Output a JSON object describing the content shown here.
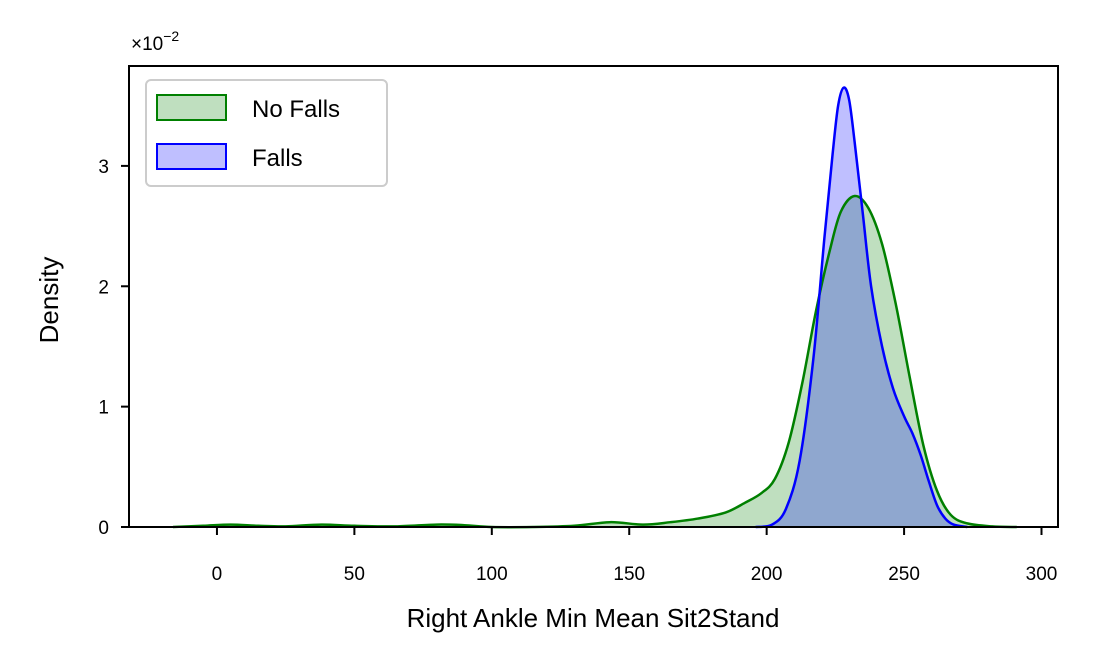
{
  "chart_data": {
    "type": "area",
    "title": "",
    "xlabel": "Right Ankle Min Mean Sit2Stand",
    "ylabel": "Density",
    "y_offset_text": "×10",
    "y_offset_exponent": "−2",
    "xlim": [
      -32,
      306
    ],
    "ylim": [
      0,
      3.83
    ],
    "x_ticks": [
      0,
      50,
      100,
      150,
      200,
      250,
      300
    ],
    "y_ticks": [
      0,
      1,
      2,
      3
    ],
    "grid": false,
    "legend_position": "top-left",
    "series": [
      {
        "name": "No Falls",
        "color": "#008000",
        "fill_color": "#008000",
        "points": [
          [
            -16,
            0.0
          ],
          [
            -5,
            0.01
          ],
          [
            5,
            0.02
          ],
          [
            15,
            0.01
          ],
          [
            25,
            0.005
          ],
          [
            38,
            0.02
          ],
          [
            50,
            0.01
          ],
          [
            65,
            0.005
          ],
          [
            80,
            0.02
          ],
          [
            90,
            0.015
          ],
          [
            100,
            0.0
          ],
          [
            115,
            0.0
          ],
          [
            130,
            0.01
          ],
          [
            143,
            0.04
          ],
          [
            155,
            0.02
          ],
          [
            165,
            0.04
          ],
          [
            175,
            0.07
          ],
          [
            185,
            0.12
          ],
          [
            192,
            0.2
          ],
          [
            198,
            0.28
          ],
          [
            203,
            0.4
          ],
          [
            208,
            0.7
          ],
          [
            213,
            1.2
          ],
          [
            218,
            1.8
          ],
          [
            223,
            2.3
          ],
          [
            227,
            2.62
          ],
          [
            232,
            2.75
          ],
          [
            237,
            2.65
          ],
          [
            242,
            2.35
          ],
          [
            247,
            1.85
          ],
          [
            252,
            1.25
          ],
          [
            257,
            0.68
          ],
          [
            262,
            0.3
          ],
          [
            267,
            0.1
          ],
          [
            273,
            0.03
          ],
          [
            282,
            0.005
          ],
          [
            291,
            0.0
          ]
        ]
      },
      {
        "name": "Falls",
        "color": "#0000ff",
        "fill_color": "#0000ff",
        "points": [
          [
            196,
            0.0
          ],
          [
            202,
            0.02
          ],
          [
            207,
            0.15
          ],
          [
            212,
            0.55
          ],
          [
            217,
            1.4
          ],
          [
            221,
            2.4
          ],
          [
            224,
            3.1
          ],
          [
            226,
            3.5
          ],
          [
            228,
            3.65
          ],
          [
            230,
            3.55
          ],
          [
            232,
            3.2
          ],
          [
            235,
            2.6
          ],
          [
            238,
            2.0
          ],
          [
            242,
            1.5
          ],
          [
            246,
            1.15
          ],
          [
            250,
            0.92
          ],
          [
            253,
            0.78
          ],
          [
            256,
            0.6
          ],
          [
            259,
            0.38
          ],
          [
            262,
            0.18
          ],
          [
            265,
            0.07
          ],
          [
            268,
            0.02
          ],
          [
            273,
            0.0
          ]
        ]
      }
    ]
  }
}
